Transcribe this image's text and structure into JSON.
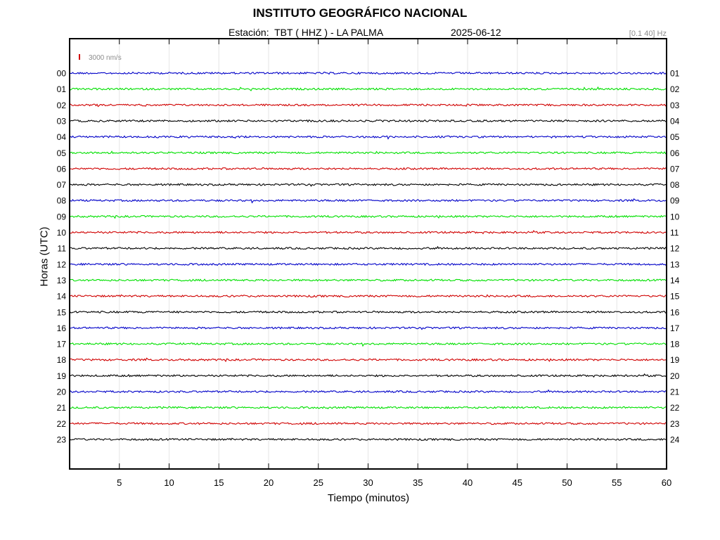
{
  "header": {
    "title": "INSTITUTO GEOGRÁFICO NACIONAL",
    "station": "Estación:  TBT ( HHZ ) - LA PALMA",
    "date": "2025-06-12",
    "filter": "[0.1 40] Hz"
  },
  "chart_data": {
    "type": "line",
    "title": "INSTITUTO GEOGRÁFICO NACIONAL",
    "xlabel": "Tiempo (minutos)",
    "ylabel": "Horas (UTC)",
    "xlim": [
      0,
      60
    ],
    "x_ticks": [
      5,
      10,
      15,
      20,
      25,
      30,
      35,
      40,
      45,
      50,
      55,
      60
    ],
    "grid": true,
    "scale_label": "3000 nm/s",
    "left_hours": [
      "00",
      "01",
      "02",
      "03",
      "04",
      "05",
      "06",
      "07",
      "08",
      "09",
      "10",
      "11",
      "12",
      "13",
      "14",
      "15",
      "16",
      "17",
      "18",
      "19",
      "20",
      "21",
      "22",
      "23"
    ],
    "right_hours": [
      "01",
      "02",
      "03",
      "04",
      "05",
      "06",
      "07",
      "08",
      "09",
      "10",
      "11",
      "12",
      "13",
      "14",
      "15",
      "16",
      "17",
      "18",
      "19",
      "20",
      "21",
      "22",
      "23",
      "24"
    ],
    "trace_colors": [
      "#0000c8",
      "#00e000",
      "#d00000",
      "#000000"
    ]
  }
}
